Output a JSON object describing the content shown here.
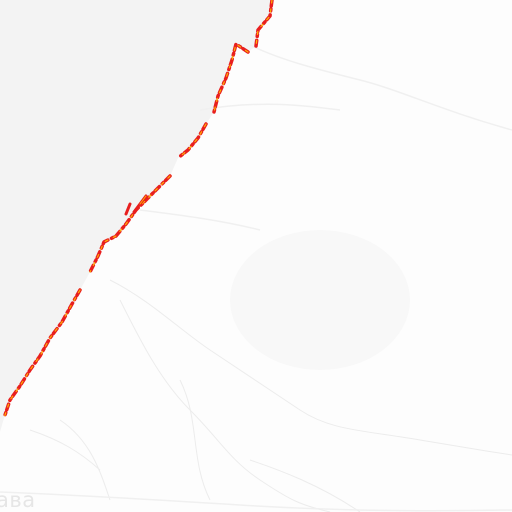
{
  "map": {
    "style": "light grey basemap with coastline heat overlay",
    "colors": {
      "sea": "#f3f3f3",
      "land": "#fdfdfd",
      "rivers": "#ececec",
      "roads": "#f3f3f3",
      "coast_heat_outer": "#e81e1e",
      "coast_heat_inner": "#ffb000",
      "label": "#e6e6e6"
    }
  },
  "labels": {
    "partial_place": "ава"
  }
}
